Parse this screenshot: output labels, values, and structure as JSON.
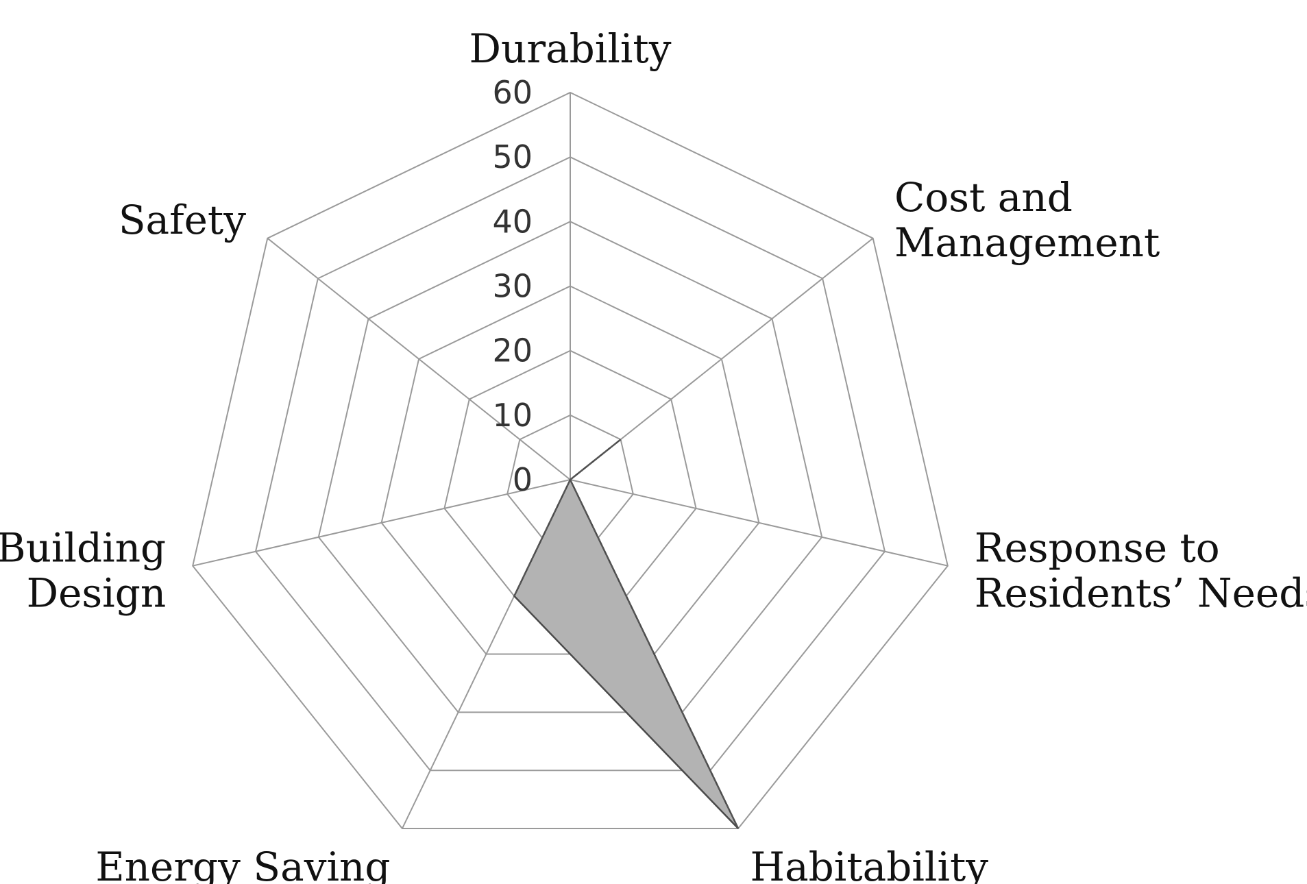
{
  "chart_data": {
    "type": "radar",
    "categories": [
      "Durability",
      "Cost and\nManagement",
      "Response to\nResidents’ Needs",
      "Habitability",
      "Energy Saving",
      "Building\nDesign",
      "Safety"
    ],
    "series": [
      {
        "values": [
          0,
          10,
          0,
          60,
          20,
          0,
          0
        ]
      }
    ],
    "rlim": [
      0,
      60
    ],
    "ticks": [
      0,
      10,
      20,
      30,
      40,
      50,
      60
    ],
    "grid": true,
    "colors": {
      "fill": "#b3b3b3",
      "grid": "#9a9a9a",
      "outline": "#4a4a4a"
    }
  }
}
